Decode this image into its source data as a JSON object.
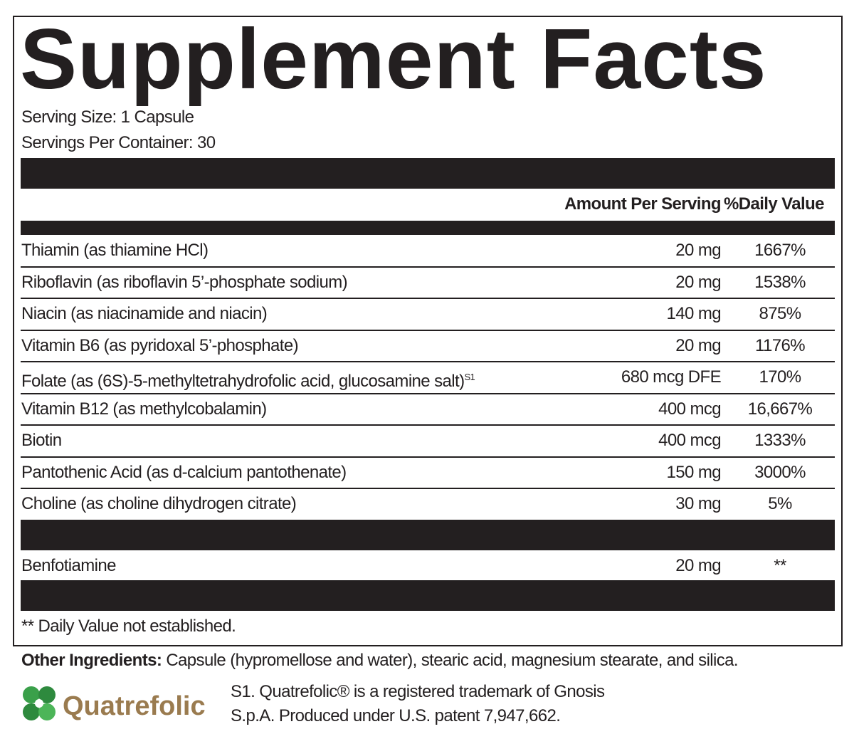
{
  "header": {
    "title": "Supplement Facts",
    "serving_size": "Serving Size: 1 Capsule",
    "servings_per_container": "Servings Per Container: 30"
  },
  "table": {
    "columns": [
      "Amount Per Serving",
      "%Daily Value"
    ],
    "rows": [
      {
        "name": "Thiamin (as thiamine HCl)",
        "amount": "20 mg",
        "dv": "1667%"
      },
      {
        "name": "Riboflavin (as riboflavin 5’-phosphate sodium)",
        "amount": "20 mg",
        "dv": "1538%"
      },
      {
        "name": "Niacin (as niacinamide and niacin)",
        "amount": "140 mg",
        "dv": "875%"
      },
      {
        "name": "Vitamin B6 (as pyridoxal 5’-phosphate)",
        "amount": "20 mg",
        "dv": "1176%"
      },
      {
        "name": "Folate (as (6S)-5-methyltetrahydrofolic acid, glucosamine salt)",
        "sup": "S1",
        "amount": "680 mcg DFE",
        "dv": "170%"
      },
      {
        "name": "Vitamin B12 (as methylcobalamin)",
        "amount": "400 mcg",
        "dv": "16,667%"
      },
      {
        "name": "Biotin",
        "amount": "400 mcg",
        "dv": "1333%"
      },
      {
        "name": "Pantothenic Acid (as d-calcium pantothenate)",
        "amount": "150 mg",
        "dv": "3000%"
      },
      {
        "name": "Choline (as choline dihydrogen citrate)",
        "amount": "30 mg",
        "dv": "5%"
      }
    ],
    "other_rows": [
      {
        "name": "Benfotiamine",
        "amount": "20 mg",
        "dv": "**"
      }
    ],
    "footnote": "** Daily Value not established."
  },
  "other_ingredients": {
    "label": "Other Ingredients:",
    "text": "Capsule (hypromellose and water), stearic acid, magnesium stearate, and silica."
  },
  "logo": {
    "text": "Quatrefolic"
  },
  "note": {
    "lines": [
      "S1. Quatrefolic® is a registered trademark of Gnosis",
      "S.p.A. Produced under U.S. patent 7,947,662."
    ]
  }
}
